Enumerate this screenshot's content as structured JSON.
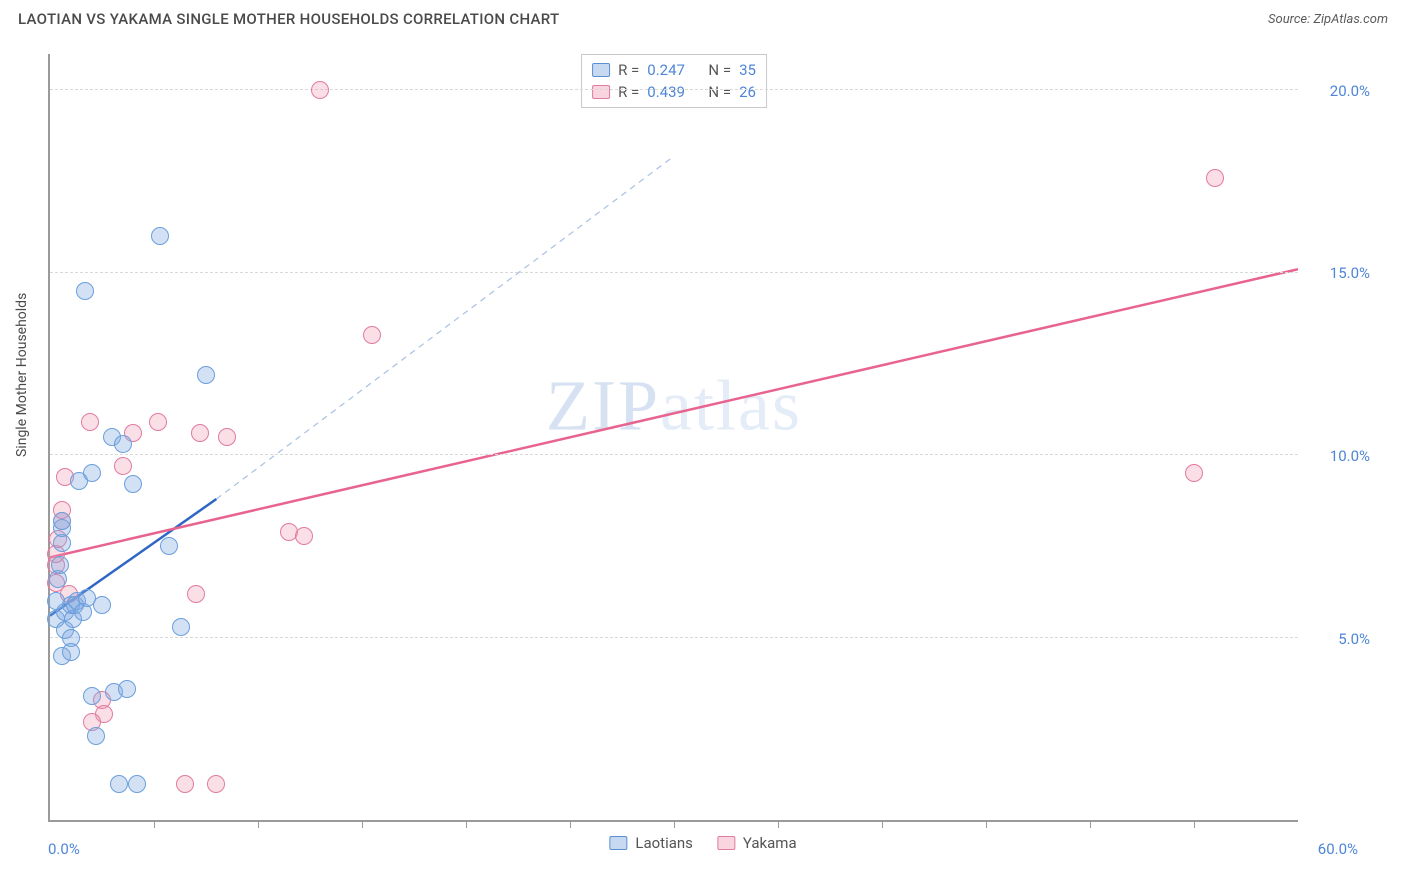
{
  "header": {
    "title": "LAOTIAN VS YAKAMA SINGLE MOTHER HOUSEHOLDS CORRELATION CHART",
    "source_prefix": "Source: ",
    "source_name": "ZipAtlas.com"
  },
  "watermark": {
    "zip": "ZIP",
    "atlas": "atlas"
  },
  "chart": {
    "type": "scatter",
    "ylabel": "Single Mother Households",
    "background_color": "#ffffff",
    "grid_color": "#d9d9d9",
    "axis_color": "#9a9a9a",
    "label_fontsize": 14,
    "title_fontsize": 15,
    "axis_num_color": "#4d86d6",
    "xlim": [
      0,
      60
    ],
    "ylim": [
      0,
      21
    ],
    "x_start_label": "0.0%",
    "x_end_label": "60.0%",
    "x_ticks_minor": [
      5,
      10,
      15,
      20,
      25,
      30,
      35,
      40,
      45,
      50,
      55
    ],
    "y_ticks": [
      {
        "v": 5,
        "label": "5.0%"
      },
      {
        "v": 10,
        "label": "10.0%"
      },
      {
        "v": 15,
        "label": "15.0%"
      },
      {
        "v": 20,
        "label": "20.0%"
      }
    ],
    "point_radius": 9,
    "series": {
      "laotians": {
        "label": "Laotians",
        "color_fill": "rgba(130,170,225,0.35)",
        "color_stroke": "#6a9fdc",
        "r_value": "0.247",
        "n_value": "35",
        "trend": {
          "x1": 0,
          "y1": 5.6,
          "x2": 8,
          "y2": 8.8,
          "style": "solid",
          "color": "#2f66c4",
          "width": 2.5,
          "ext_x2": 30,
          "ext_y2": 18.2,
          "ext_style": "dashed",
          "ext_color": "#a8c0e4",
          "ext_width": 1.2
        },
        "points": [
          [
            0.3,
            5.5
          ],
          [
            0.3,
            6.0
          ],
          [
            0.4,
            6.6
          ],
          [
            0.5,
            7.0
          ],
          [
            0.6,
            7.6
          ],
          [
            0.6,
            8.0
          ],
          [
            0.6,
            8.2
          ],
          [
            0.6,
            4.5
          ],
          [
            0.7,
            5.2
          ],
          [
            0.7,
            5.7
          ],
          [
            1.0,
            5.9
          ],
          [
            1.0,
            5.0
          ],
          [
            1.1,
            5.5
          ],
          [
            1.2,
            5.9
          ],
          [
            1.3,
            6.0
          ],
          [
            1.4,
            9.3
          ],
          [
            1.6,
            5.7
          ],
          [
            1.7,
            14.5
          ],
          [
            2.0,
            9.5
          ],
          [
            2.0,
            3.4
          ],
          [
            2.2,
            2.3
          ],
          [
            2.5,
            5.9
          ],
          [
            3.0,
            10.5
          ],
          [
            3.1,
            3.5
          ],
          [
            3.3,
            1.0
          ],
          [
            3.5,
            10.3
          ],
          [
            3.7,
            3.6
          ],
          [
            4.0,
            9.2
          ],
          [
            4.2,
            1.0
          ],
          [
            5.3,
            16.0
          ],
          [
            5.7,
            7.5
          ],
          [
            6.3,
            5.3
          ],
          [
            7.5,
            12.2
          ],
          [
            1.0,
            4.6
          ],
          [
            1.8,
            6.1
          ]
        ]
      },
      "yakama": {
        "label": "Yakama",
        "color_fill": "rgba(240,150,175,0.30)",
        "color_stroke": "#e17ba0",
        "r_value": "0.439",
        "n_value": "26",
        "trend": {
          "x1": 0,
          "y1": 7.2,
          "x2": 60,
          "y2": 15.1,
          "style": "solid",
          "color": "#e8648f",
          "width": 2.5
        },
        "points": [
          [
            0.3,
            6.5
          ],
          [
            0.3,
            7.0
          ],
          [
            0.3,
            7.3
          ],
          [
            0.4,
            7.7
          ],
          [
            0.6,
            8.2
          ],
          [
            0.6,
            8.5
          ],
          [
            0.7,
            9.4
          ],
          [
            1.9,
            10.9
          ],
          [
            2.5,
            3.3
          ],
          [
            2.6,
            2.9
          ],
          [
            3.5,
            9.7
          ],
          [
            4.0,
            10.6
          ],
          [
            5.2,
            10.9
          ],
          [
            6.5,
            1.0
          ],
          [
            7.0,
            6.2
          ],
          [
            7.2,
            10.6
          ],
          [
            8.0,
            1.0
          ],
          [
            8.5,
            10.5
          ],
          [
            11.5,
            7.9
          ],
          [
            12.2,
            7.8
          ],
          [
            13.0,
            20.0
          ],
          [
            15.5,
            13.3
          ],
          [
            55.0,
            9.5
          ],
          [
            56.0,
            17.6
          ],
          [
            0.9,
            6.2
          ],
          [
            2.0,
            2.7
          ]
        ]
      }
    }
  },
  "legend_top": {
    "r_label": "R =",
    "n_label": "N ="
  }
}
